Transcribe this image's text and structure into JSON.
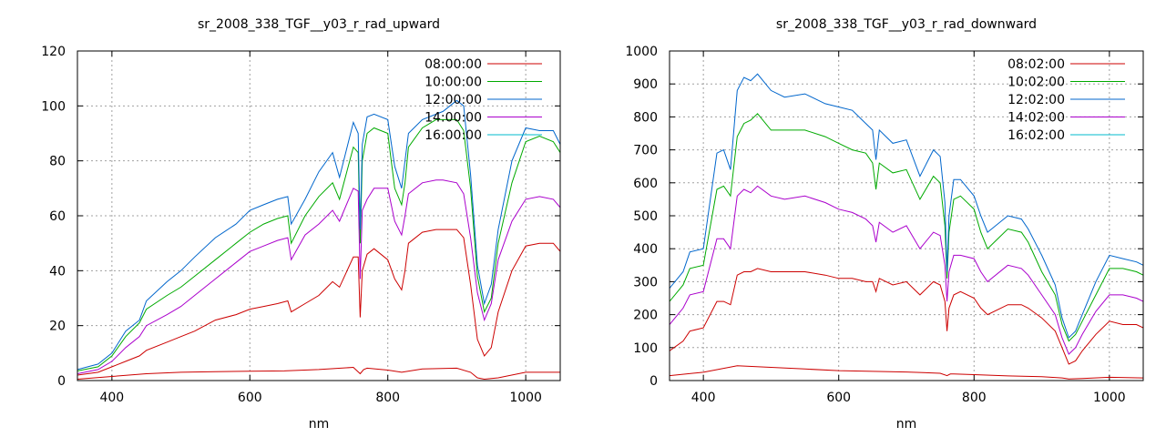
{
  "chart_data": [
    {
      "type": "line",
      "title": "sr_2008_338_TGF__y03_r_rad_upward",
      "xlabel": "nm",
      "ylabel": "",
      "xlim": [
        350,
        1050
      ],
      "ylim": [
        0,
        120
      ],
      "xticks": [
        400,
        600,
        800,
        1000
      ],
      "yticks": [
        0,
        20,
        40,
        60,
        80,
        100,
        120
      ],
      "grid": true,
      "legend_position": "top-right",
      "series": [
        {
          "name": "08:00:00",
          "color": "#cc0000",
          "x": [
            350,
            400,
            450,
            500,
            550,
            600,
            650,
            700,
            750,
            760,
            765,
            770,
            800,
            820,
            850,
            900,
            920,
            930,
            940,
            960,
            1000,
            1050
          ],
          "y": [
            0.5,
            1.5,
            2.5,
            3,
            3.2,
            3.4,
            3.5,
            4,
            4.8,
            2.5,
            4,
            4.5,
            3.8,
            3,
            4.2,
            4.5,
            3,
            1,
            0.5,
            1,
            3,
            3
          ]
        },
        {
          "name": "10:00:00",
          "color": "#00aa00",
          "x": [
            350,
            380,
            400,
            420,
            440,
            450,
            480,
            500,
            520,
            550,
            580,
            600,
            620,
            640,
            655,
            660,
            680,
            700,
            720,
            730,
            750,
            757,
            760,
            763,
            770,
            780,
            800,
            810,
            820,
            825,
            830,
            850,
            870,
            880,
            900,
            910,
            920,
            930,
            940,
            950,
            960,
            980,
            1000,
            1020,
            1040,
            1050
          ],
          "y": [
            3.5,
            5,
            9,
            16,
            21,
            26,
            31,
            34,
            38,
            44,
            50,
            54,
            57,
            59,
            60,
            50,
            60,
            67,
            72,
            66,
            85,
            83,
            50,
            80,
            90,
            92,
            90,
            70,
            64,
            72,
            85,
            92,
            95,
            95,
            95,
            91,
            70,
            38,
            25,
            30,
            50,
            72,
            87,
            89,
            87,
            83
          ]
        },
        {
          "name": "12:00:00",
          "color": "#0066cc",
          "x": [
            350,
            380,
            400,
            420,
            440,
            450,
            480,
            500,
            520,
            550,
            580,
            600,
            620,
            640,
            655,
            660,
            680,
            700,
            720,
            730,
            750,
            757,
            760,
            763,
            770,
            780,
            800,
            810,
            820,
            825,
            830,
            850,
            870,
            880,
            900,
            910,
            920,
            930,
            940,
            950,
            960,
            980,
            1000,
            1020,
            1040,
            1050
          ],
          "y": [
            4,
            6,
            10,
            18,
            22,
            29,
            36,
            40,
            45,
            52,
            57,
            62,
            64,
            66,
            67,
            57,
            66,
            76,
            83,
            74,
            94,
            90,
            55,
            86,
            96,
            97,
            95,
            78,
            70,
            80,
            90,
            95,
            97,
            98,
            102,
            100,
            75,
            42,
            28,
            35,
            55,
            80,
            92,
            91,
            91,
            86
          ]
        },
        {
          "name": "14:00:00",
          "color": "#aa00cc",
          "x": [
            350,
            380,
            400,
            420,
            440,
            450,
            480,
            500,
            520,
            550,
            580,
            600,
            620,
            640,
            655,
            660,
            680,
            700,
            720,
            730,
            750,
            757,
            760,
            763,
            770,
            780,
            800,
            810,
            820,
            825,
            830,
            850,
            870,
            880,
            900,
            910,
            920,
            930,
            940,
            950,
            960,
            980,
            1000,
            1020,
            1040,
            1050
          ],
          "y": [
            2.5,
            4,
            7,
            12,
            16,
            20,
            24,
            27,
            31,
            37,
            43,
            47,
            49,
            51,
            52,
            44,
            53,
            57,
            62,
            58,
            70,
            69,
            37,
            62,
            66,
            70,
            70,
            58,
            53,
            60,
            68,
            72,
            73,
            73,
            72,
            68,
            52,
            32,
            22,
            28,
            44,
            58,
            66,
            67,
            66,
            63
          ]
        },
        {
          "name": "16:00:00",
          "color": "#00bbcc",
          "x": [
            1050
          ],
          "y": [
            87
          ]
        },
        {
          "name": "",
          "color": "#cc0000",
          "x": [
            350,
            380,
            400,
            420,
            440,
            450,
            480,
            500,
            520,
            550,
            580,
            600,
            620,
            640,
            655,
            660,
            680,
            700,
            720,
            730,
            750,
            757,
            760,
            763,
            770,
            780,
            800,
            810,
            820,
            825,
            830,
            850,
            870,
            880,
            900,
            910,
            920,
            930,
            940,
            950,
            960,
            980,
            1000,
            1020,
            1040,
            1050
          ],
          "y": [
            2,
            3,
            5,
            7,
            9,
            11,
            14,
            16,
            18,
            22,
            24,
            26,
            27,
            28,
            29,
            25,
            28,
            31,
            36,
            34,
            45,
            45,
            23,
            40,
            46,
            48,
            44,
            37,
            33,
            40,
            50,
            54,
            55,
            55,
            55,
            52,
            35,
            15,
            9,
            12,
            25,
            40,
            49,
            50,
            50,
            47
          ]
        }
      ]
    },
    {
      "type": "line",
      "title": "sr_2008_338_TGF__y03_r_rad_downward",
      "xlabel": "nm",
      "ylabel": "",
      "xlim": [
        350,
        1050
      ],
      "ylim": [
        0,
        1000
      ],
      "xticks": [
        400,
        600,
        800,
        1000
      ],
      "yticks": [
        0,
        100,
        200,
        300,
        400,
        500,
        600,
        700,
        800,
        900,
        1000
      ],
      "grid": true,
      "legend_position": "top-right",
      "series": [
        {
          "name": "08:02:00",
          "color": "#cc0000",
          "x": [
            350,
            400,
            450,
            500,
            550,
            600,
            650,
            700,
            750,
            760,
            765,
            770,
            800,
            850,
            900,
            930,
            940,
            960,
            1000,
            1050
          ],
          "y": [
            15,
            25,
            45,
            40,
            35,
            30,
            28,
            26,
            22,
            15,
            20,
            20,
            18,
            14,
            12,
            8,
            5,
            6,
            10,
            8
          ]
        },
        {
          "name": "10:02:00",
          "color": "#00aa00",
          "x": [
            350,
            370,
            380,
            400,
            420,
            430,
            440,
            450,
            460,
            470,
            480,
            500,
            520,
            550,
            580,
            600,
            620,
            640,
            650,
            655,
            660,
            680,
            700,
            720,
            740,
            750,
            757,
            760,
            763,
            770,
            780,
            800,
            810,
            820,
            850,
            870,
            880,
            900,
            920,
            930,
            940,
            950,
            960,
            980,
            1000,
            1020,
            1040,
            1050
          ],
          "y": [
            240,
            290,
            340,
            350,
            580,
            590,
            560,
            740,
            780,
            790,
            810,
            760,
            760,
            760,
            740,
            720,
            700,
            690,
            660,
            580,
            660,
            630,
            640,
            550,
            620,
            600,
            470,
            310,
            450,
            550,
            560,
            520,
            450,
            400,
            460,
            450,
            420,
            330,
            260,
            170,
            120,
            140,
            180,
            260,
            340,
            340,
            330,
            320
          ]
        },
        {
          "name": "12:02:00",
          "color": "#0066cc",
          "x": [
            350,
            370,
            380,
            400,
            420,
            430,
            440,
            450,
            460,
            470,
            480,
            500,
            520,
            550,
            580,
            600,
            620,
            640,
            650,
            655,
            660,
            680,
            700,
            720,
            740,
            750,
            757,
            760,
            763,
            770,
            780,
            800,
            810,
            820,
            850,
            870,
            880,
            900,
            920,
            930,
            940,
            950,
            960,
            980,
            1000,
            1020,
            1040,
            1050
          ],
          "y": [
            280,
            330,
            390,
            400,
            690,
            700,
            640,
            880,
            920,
            910,
            930,
            880,
            860,
            870,
            840,
            830,
            820,
            780,
            760,
            670,
            760,
            720,
            730,
            620,
            700,
            680,
            540,
            330,
            500,
            610,
            610,
            560,
            500,
            450,
            500,
            490,
            460,
            380,
            290,
            190,
            130,
            150,
            200,
            300,
            380,
            370,
            360,
            350
          ]
        },
        {
          "name": "14:02:00",
          "color": "#aa00cc",
          "x": [
            350,
            370,
            380,
            400,
            420,
            430,
            440,
            450,
            460,
            470,
            480,
            500,
            520,
            550,
            580,
            600,
            620,
            640,
            650,
            655,
            660,
            680,
            700,
            720,
            740,
            750,
            757,
            760,
            763,
            770,
            780,
            800,
            810,
            820,
            850,
            870,
            880,
            900,
            920,
            930,
            940,
            950,
            960,
            980,
            1000,
            1020,
            1040,
            1050
          ],
          "y": [
            170,
            220,
            260,
            270,
            430,
            430,
            400,
            560,
            580,
            570,
            590,
            560,
            550,
            560,
            540,
            520,
            510,
            490,
            470,
            420,
            480,
            450,
            470,
            400,
            450,
            440,
            350,
            240,
            330,
            380,
            380,
            370,
            330,
            300,
            350,
            340,
            320,
            260,
            200,
            130,
            80,
            100,
            140,
            210,
            260,
            260,
            250,
            240
          ]
        },
        {
          "name": "16:02:00",
          "color": "#00bbcc",
          "x": [
            1050
          ],
          "y": [
            360
          ]
        },
        {
          "name": "",
          "color": "#cc0000",
          "x": [
            350,
            370,
            380,
            400,
            420,
            430,
            440,
            450,
            460,
            470,
            480,
            500,
            520,
            550,
            580,
            600,
            620,
            640,
            650,
            655,
            660,
            680,
            700,
            720,
            740,
            750,
            757,
            760,
            763,
            770,
            780,
            800,
            810,
            820,
            850,
            870,
            880,
            900,
            920,
            930,
            940,
            950,
            960,
            980,
            1000,
            1020,
            1040,
            1050
          ],
          "y": [
            90,
            120,
            150,
            160,
            240,
            240,
            230,
            320,
            330,
            330,
            340,
            330,
            330,
            330,
            320,
            310,
            310,
            300,
            300,
            270,
            310,
            290,
            300,
            260,
            300,
            290,
            240,
            150,
            220,
            260,
            270,
            250,
            220,
            200,
            230,
            230,
            220,
            190,
            150,
            100,
            50,
            60,
            90,
            140,
            180,
            170,
            170,
            160
          ]
        }
      ]
    }
  ]
}
